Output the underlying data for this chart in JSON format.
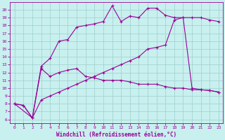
{
  "xlabel": "Windchill (Refroidissement éolien,°C)",
  "bg_color": "#c8f0ee",
  "line_color": "#990099",
  "xlim": [
    -0.5,
    23.5
  ],
  "ylim": [
    5.5,
    21.0
  ],
  "xticks": [
    0,
    1,
    2,
    3,
    4,
    5,
    6,
    7,
    8,
    9,
    10,
    11,
    12,
    13,
    14,
    15,
    16,
    17,
    18,
    19,
    20,
    21,
    22,
    23
  ],
  "yticks": [
    6,
    7,
    8,
    9,
    10,
    11,
    12,
    13,
    14,
    15,
    16,
    17,
    18,
    19,
    20
  ],
  "line1_x": [
    0,
    1,
    2,
    3,
    4,
    5,
    6,
    7,
    8,
    9,
    10,
    11,
    12,
    13,
    14,
    15,
    16,
    17,
    18,
    19,
    20,
    21,
    22,
    23
  ],
  "line1_y": [
    8.0,
    7.8,
    6.2,
    12.8,
    13.8,
    16.0,
    16.2,
    17.8,
    18.0,
    18.2,
    18.5,
    20.5,
    18.5,
    19.2,
    19.0,
    20.2,
    20.2,
    19.3,
    19.0,
    19.0,
    19.0,
    19.0,
    18.7,
    18.5
  ],
  "line2_x": [
    0,
    2,
    3,
    4,
    5,
    6,
    7,
    8,
    9,
    10,
    11,
    12,
    13,
    14,
    15,
    16,
    17,
    18,
    19,
    20,
    21,
    22,
    23
  ],
  "line2_y": [
    8.0,
    6.2,
    12.5,
    11.5,
    12.0,
    12.3,
    12.5,
    11.5,
    11.3,
    11.0,
    11.0,
    11.0,
    10.8,
    10.5,
    10.5,
    10.5,
    10.2,
    10.0,
    10.0,
    9.8,
    9.8,
    9.7,
    9.5
  ],
  "line3_x": [
    0,
    1,
    2,
    3,
    4,
    5,
    6,
    7,
    8,
    9,
    10,
    11,
    12,
    13,
    14,
    15,
    16,
    17,
    18,
    19,
    20,
    21,
    22,
    23
  ],
  "line3_y": [
    8.0,
    7.8,
    6.2,
    8.5,
    9.0,
    9.5,
    10.0,
    10.5,
    11.0,
    11.5,
    12.0,
    12.5,
    13.0,
    13.5,
    14.0,
    15.0,
    15.2,
    15.5,
    18.7,
    19.0,
    10.0,
    9.8,
    9.7,
    9.5
  ],
  "grid_color": "#9ecece",
  "marker": "+",
  "markersize": 3,
  "linewidth": 0.8,
  "tick_fontsize": 4.5,
  "xlabel_fontsize": 5.5
}
